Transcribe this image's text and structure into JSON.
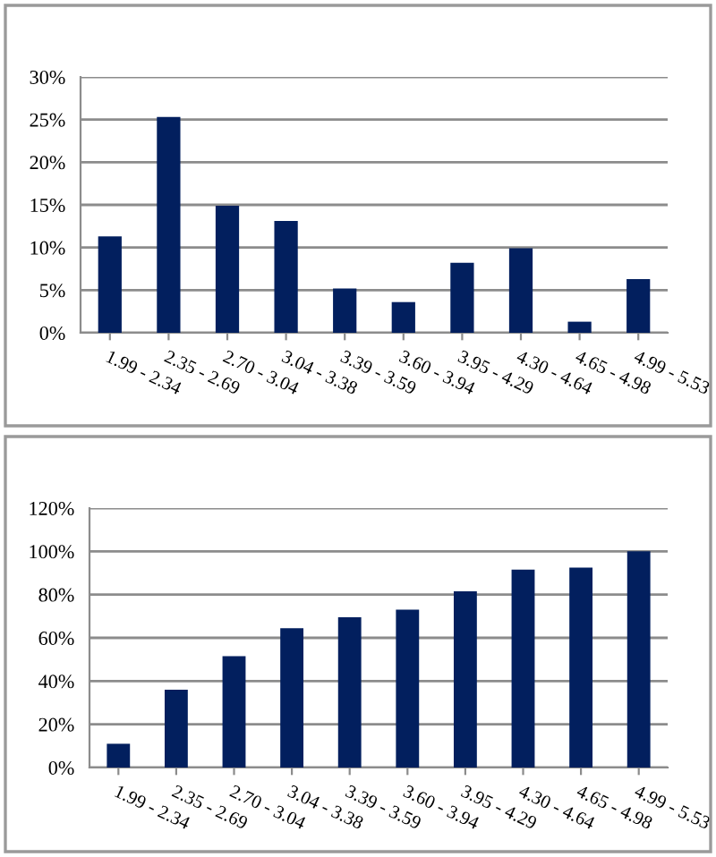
{
  "chart_data": [
    {
      "type": "bar",
      "categories": [
        "1.99 - 2.34",
        "2.35 - 2.69",
        "2.70 - 3.04",
        "3.04 - 3.38",
        "3.39 - 3.59",
        "3.60 - 3.94",
        "3.95 - 4.29",
        "4.30 - 4.64",
        "4.65 - 4.98",
        "4.99 - 5.53"
      ],
      "values": [
        11.3,
        25.3,
        14.9,
        13.1,
        5.2,
        3.6,
        8.2,
        9.9,
        1.3,
        6.3
      ],
      "color": "#021f5e",
      "ylim": [
        0,
        30
      ],
      "yticks": [
        {
          "value": 0,
          "label": "0%"
        },
        {
          "value": 5,
          "label": "5%"
        },
        {
          "value": 10,
          "label": "10%"
        },
        {
          "value": 15,
          "label": "15%"
        },
        {
          "value": 20,
          "label": "20%"
        },
        {
          "value": 25,
          "label": "25%"
        },
        {
          "value": 30,
          "label": "30%"
        }
      ],
      "grid": "y",
      "legend": false
    },
    {
      "type": "bar",
      "categories": [
        "1.99 - 2.34",
        "2.35 - 2.69",
        "2.70 - 3.04",
        "3.04 - 3.38",
        "3.39 - 3.59",
        "3.60 - 3.94",
        "3.95 - 4.29",
        "4.30 - 4.64",
        "4.65 - 4.98",
        "4.99 - 5.53"
      ],
      "values": [
        11,
        36,
        51.5,
        64.5,
        69.5,
        73,
        81.5,
        91.5,
        92.5,
        100
      ],
      "color": "#021f5e",
      "ylim": [
        0,
        120
      ],
      "yticks": [
        {
          "value": 0,
          "label": "0%"
        },
        {
          "value": 20,
          "label": "20%"
        },
        {
          "value": 40,
          "label": "40%"
        },
        {
          "value": 60,
          "label": "60%"
        },
        {
          "value": 80,
          "label": "80%"
        },
        {
          "value": 100,
          "label": "100%"
        },
        {
          "value": 120,
          "label": "120%"
        }
      ],
      "grid": "y",
      "legend": false
    }
  ]
}
